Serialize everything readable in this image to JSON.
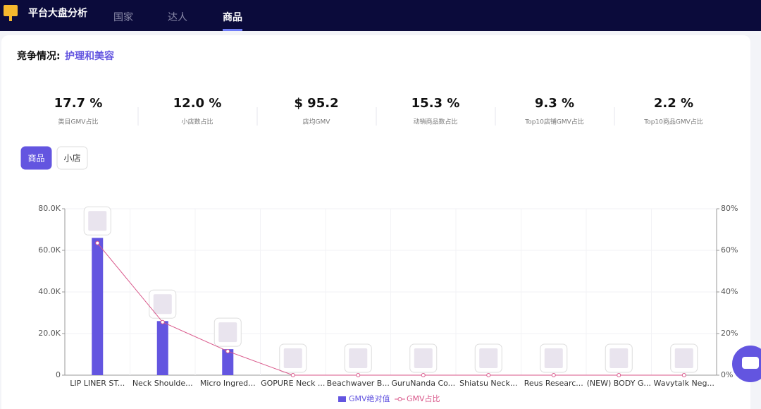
{
  "nav": {
    "title": "平台大盘分析",
    "tabs": [
      "国家",
      "达人",
      "商品"
    ],
    "active_tab": 2
  },
  "header": {
    "label": "竞争情况:",
    "category": "护理和美容"
  },
  "stats": [
    {
      "value": "17.7 %",
      "label": "类目GMV占比"
    },
    {
      "value": "12.0 %",
      "label": "小店数占比"
    },
    {
      "value": "$ 95.2",
      "label": "店均GMV"
    },
    {
      "value": "15.3 %",
      "label": "动销商品数占比"
    },
    {
      "value": "9.3 %",
      "label": "Top10店铺GMV占比"
    },
    {
      "value": "2.2 %",
      "label": "Top10商品GMV占比"
    }
  ],
  "toggle": {
    "options": [
      "商品",
      "小店"
    ],
    "active": 0
  },
  "chart_data": {
    "type": "bar",
    "categories": [
      "LIP LINER ST...",
      "Neck Shoulde...",
      "Micro Ingred...",
      "GOPURE Neck ...",
      "Beachwaver B...",
      "GuruNanda Co...",
      "Shiatsu Neck...",
      "Reus Researc...",
      "(NEW) BODY G...",
      "Wavytalk Neg..."
    ],
    "series": [
      {
        "name": "GMV绝对值",
        "type": "bar",
        "color": "#6355e0",
        "values": [
          66000,
          26000,
          12500,
          0,
          0,
          0,
          0,
          0,
          0,
          0
        ]
      },
      {
        "name": "GMV占比",
        "type": "line",
        "axis": "y2",
        "color": "#d9578a",
        "values": [
          63.5,
          25.5,
          11.5,
          0,
          0,
          0,
          0,
          0,
          0,
          0
        ]
      }
    ],
    "ylim": [
      0,
      80000
    ],
    "yticks": [
      0,
      {
        "value": 20000,
        "label": "20.0K"
      },
      {
        "value": 40000,
        "label": "40.0K"
      },
      {
        "value": 60000,
        "label": "60.0K"
      },
      {
        "value": 80000,
        "label": "80.0K"
      }
    ],
    "y2lim": [
      0,
      80
    ],
    "y2ticks": [
      {
        "value": 0,
        "label": "0%"
      },
      {
        "value": 20,
        "label": "20%"
      },
      {
        "value": 40,
        "label": "40%"
      },
      {
        "value": 60,
        "label": "60%"
      },
      {
        "value": 80,
        "label": "80%"
      }
    ],
    "grid": true
  }
}
